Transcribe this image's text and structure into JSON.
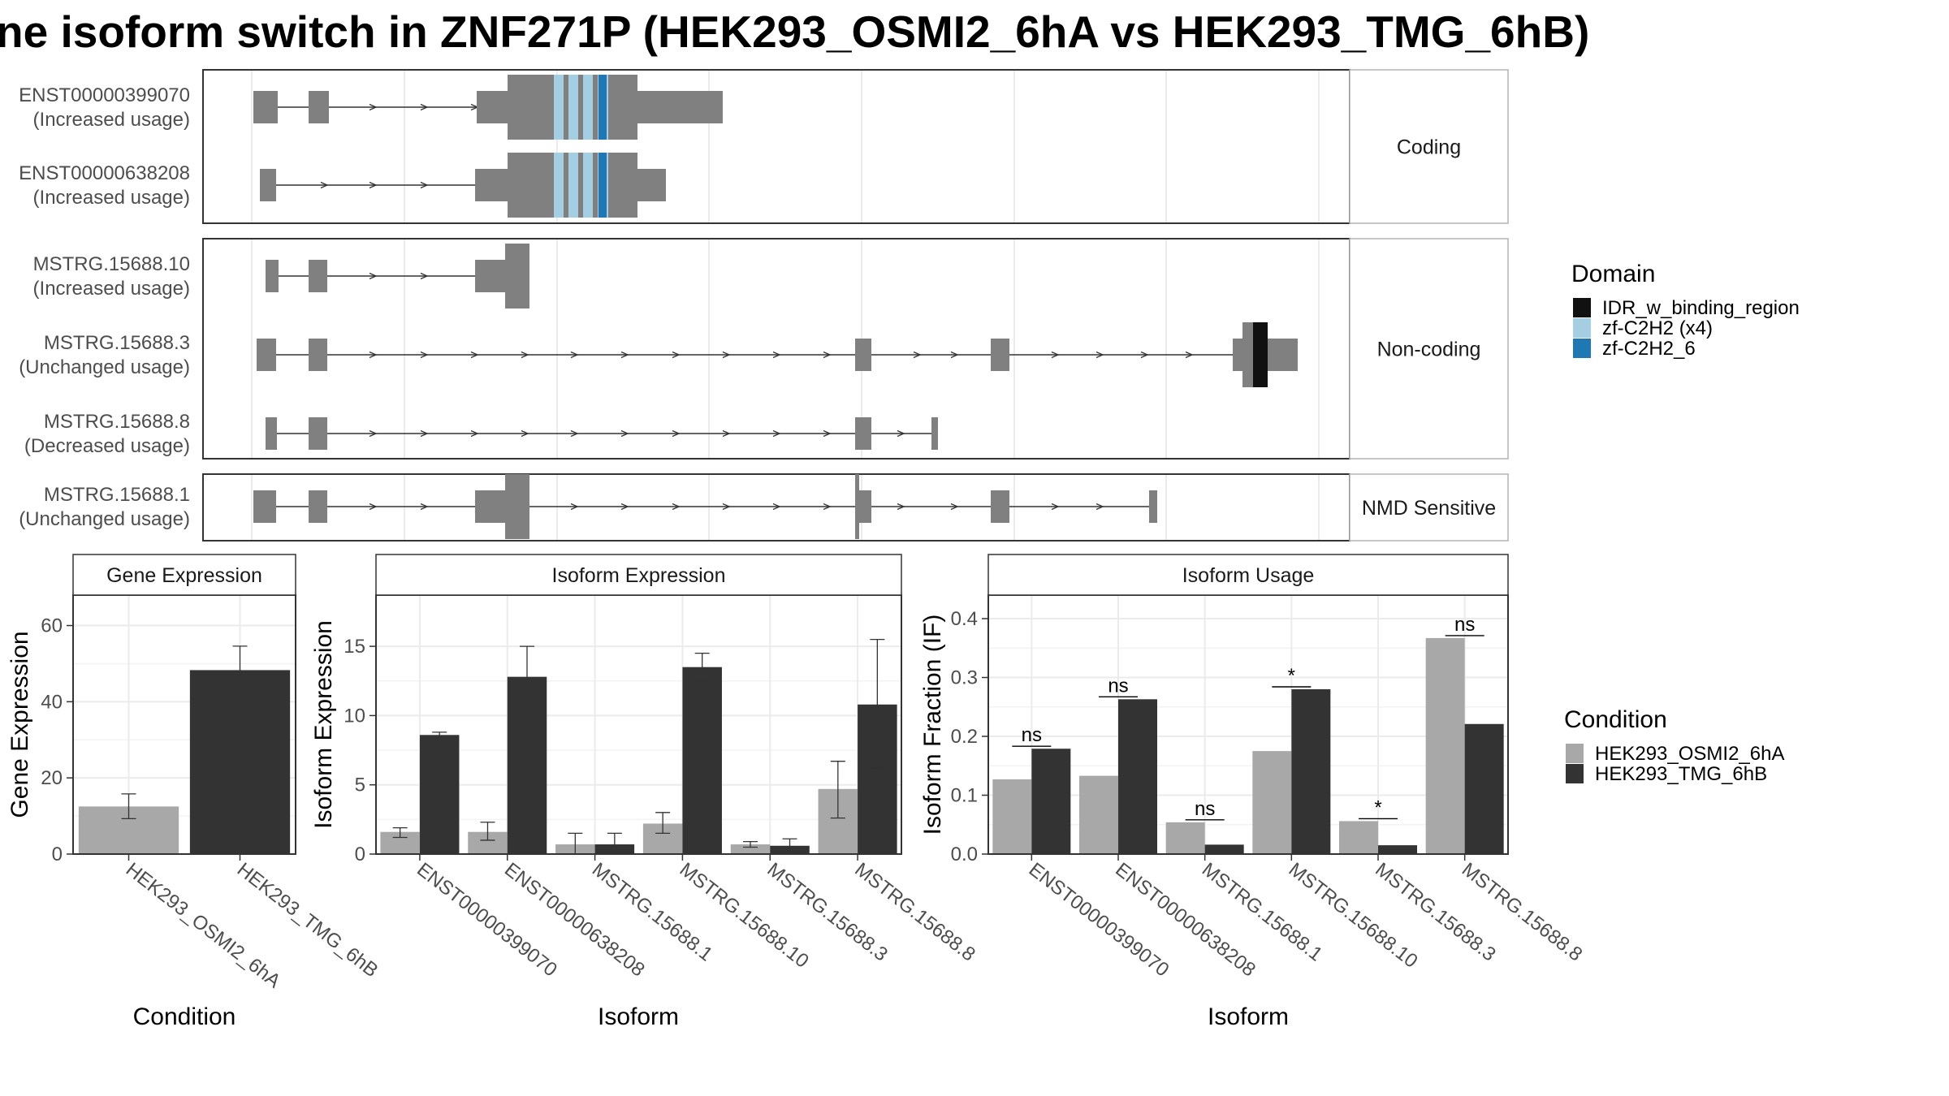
{
  "title": "ne isoform switch in ZNF271P (HEK293_OSMI2_6hA vs HEK293_TMG_6hB)",
  "colors": {
    "exon": "#808080",
    "grid": "#ebebeb",
    "panel_border": "#333333",
    "idr": "#111111",
    "zf_c2h2_x4": "#a6cee3",
    "zf_c2h2_6": "#1f78b4",
    "cond_a": "#a8a8a8",
    "cond_b": "#333333"
  },
  "structure": {
    "facets": [
      "Coding",
      "Non-coding",
      "NMD Sensitive"
    ],
    "isoforms": [
      {
        "id": "ENST00000399070",
        "usage": "(Increased usage)",
        "facet": 0
      },
      {
        "id": "ENST00000638208",
        "usage": "(Increased usage)",
        "facet": 0
      },
      {
        "id": "MSTRG.15688.10",
        "usage": "(Increased usage)",
        "facet": 1
      },
      {
        "id": "MSTRG.15688.3",
        "usage": "(Unchanged usage)",
        "facet": 1
      },
      {
        "id": "MSTRG.15688.8",
        "usage": "(Decreased usage)",
        "facet": 1
      },
      {
        "id": "MSTRG.15688.1",
        "usage": "(Unchanged usage)",
        "facet": 2
      }
    ]
  },
  "legend_domain": {
    "title": "Domain",
    "items": [
      {
        "label": "IDR_w_binding_region",
        "color": "#111111"
      },
      {
        "label": "zf-C2H2 (x4)",
        "color": "#a6cee3"
      },
      {
        "label": "zf-C2H2_6",
        "color": "#1f78b4"
      }
    ]
  },
  "legend_condition": {
    "title": "Condition",
    "items": [
      {
        "label": "HEK293_OSMI2_6hA",
        "color": "#a8a8a8"
      },
      {
        "label": "HEK293_TMG_6hB",
        "color": "#333333"
      }
    ]
  },
  "chart_data": [
    {
      "type": "bar",
      "title": "Gene Expression",
      "xlabel": "Condition",
      "ylabel": "Gene Expression",
      "categories": [
        "HEK293_OSMI2_6hA",
        "HEK293_TMG_6hB"
      ],
      "values": [
        12.5,
        48.3
      ],
      "errors": [
        [
          9.3,
          15.8
        ],
        [
          41.8,
          54.6
        ]
      ],
      "ylim": [
        0,
        68
      ],
      "yticks": [
        0,
        20,
        40,
        60
      ]
    },
    {
      "type": "bar",
      "title": "Isoform Expression",
      "xlabel": "Isoform",
      "ylabel": "Isoform Expression",
      "categories": [
        "ENST00000399070",
        "ENST00000638208",
        "MSTRG.15688.1",
        "MSTRG.15688.10",
        "MSTRG.15688.3",
        "MSTRG.15688.8"
      ],
      "series": [
        {
          "name": "HEK293_OSMI2_6hA",
          "values": [
            1.6,
            1.6,
            0.7,
            2.2,
            0.7,
            4.7
          ],
          "errors": [
            [
              1.2,
              1.9
            ],
            [
              1.0,
              2.3
            ],
            [
              0.0,
              1.5
            ],
            [
              1.5,
              3.0
            ],
            [
              0.5,
              0.9
            ],
            [
              2.6,
              6.7
            ]
          ]
        },
        {
          "name": "HEK293_TMG_6hB",
          "values": [
            8.6,
            12.8,
            0.7,
            13.5,
            0.6,
            10.8
          ],
          "errors": [
            [
              8.3,
              8.8
            ],
            [
              10.6,
              15.0
            ],
            [
              0.0,
              1.5
            ],
            [
              12.5,
              14.5
            ],
            [
              0.1,
              1.1
            ],
            [
              6.2,
              15.5
            ]
          ]
        }
      ],
      "ylim": [
        0,
        18.7
      ],
      "yticks": [
        0,
        5,
        10,
        15
      ]
    },
    {
      "type": "bar",
      "title": "Isoform Usage",
      "xlabel": "Isoform",
      "ylabel": "Isoform Fraction (IF)",
      "categories": [
        "ENST00000399070",
        "ENST00000638208",
        "MSTRG.15688.1",
        "MSTRG.15688.10",
        "MSTRG.15688.3",
        "MSTRG.15688.8"
      ],
      "series": [
        {
          "name": "HEK293_OSMI2_6hA",
          "values": [
            0.127,
            0.133,
            0.054,
            0.175,
            0.056,
            0.367
          ]
        },
        {
          "name": "HEK293_TMG_6hB",
          "values": [
            0.179,
            0.263,
            0.016,
            0.28,
            0.015,
            0.221
          ]
        }
      ],
      "significance": [
        "ns",
        "ns",
        "ns",
        "*",
        "*",
        "ns"
      ],
      "ylim": [
        0,
        0.44
      ],
      "yticks": [
        0.0,
        0.1,
        0.2,
        0.3,
        0.4
      ]
    }
  ]
}
